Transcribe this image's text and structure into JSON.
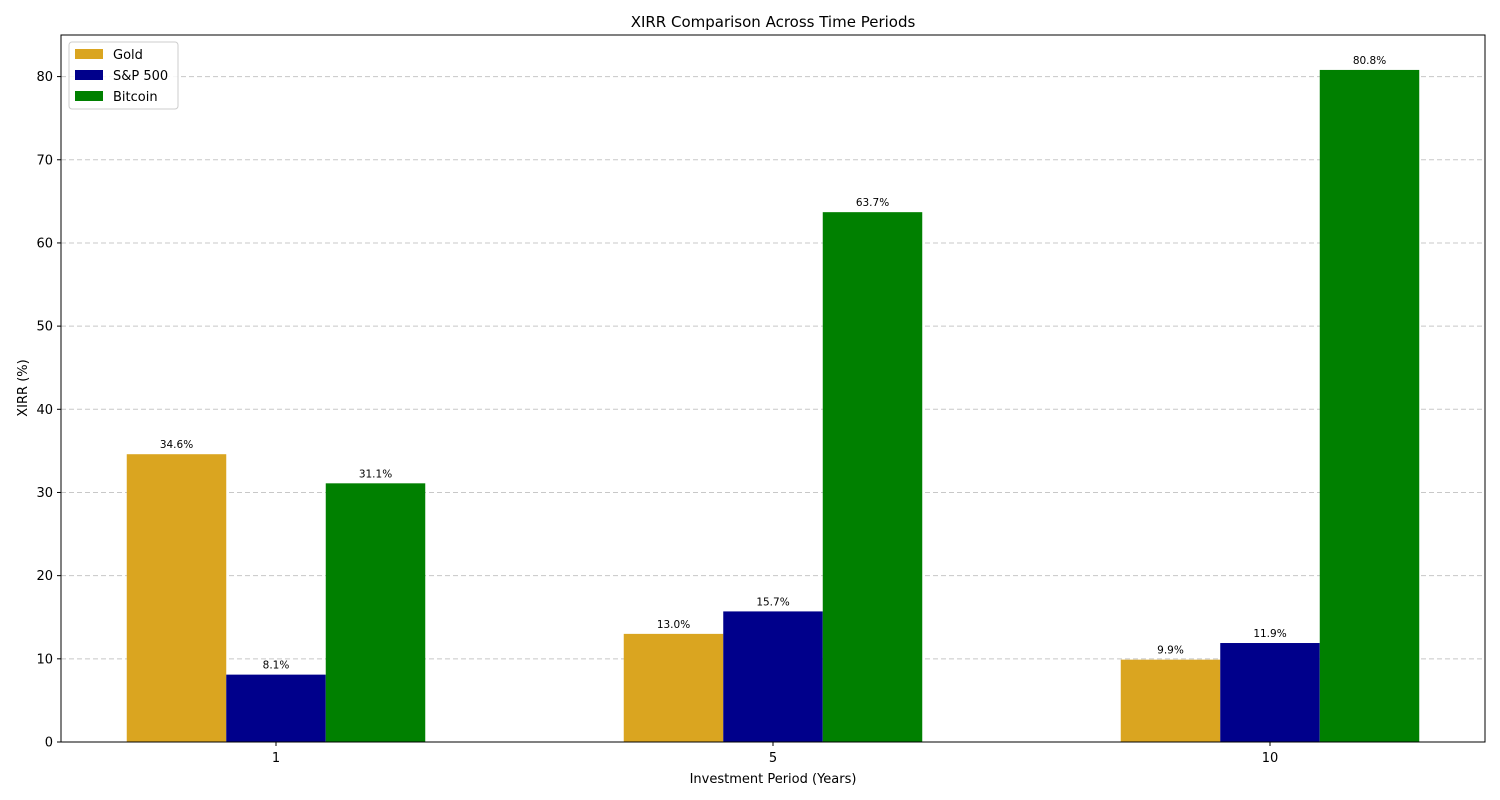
{
  "chart_data": {
    "type": "bar",
    "title": "XIRR Comparison Across Time Periods",
    "xlabel": "Investment Period (Years)",
    "ylabel": "XIRR (%)",
    "categories": [
      "1",
      "5",
      "10"
    ],
    "ylim": [
      0,
      85
    ],
    "yticks": [
      0,
      10,
      20,
      30,
      40,
      50,
      60,
      70,
      80
    ],
    "grid": "y, dashed",
    "legend_position": "top-left",
    "series": [
      {
        "name": "Gold",
        "color": "#DAA520",
        "values": [
          34.6,
          13.0,
          9.9
        ],
        "labels": [
          "34.6%",
          "13.0%",
          "9.9%"
        ]
      },
      {
        "name": "S&P 500",
        "color": "#00008B",
        "values": [
          8.1,
          15.7,
          11.9
        ],
        "labels": [
          "8.1%",
          "15.7%",
          "11.9%"
        ]
      },
      {
        "name": "Bitcoin",
        "color": "#008000",
        "values": [
          31.1,
          63.7,
          80.8
        ],
        "labels": [
          "31.1%",
          "63.7%",
          "80.8%"
        ]
      }
    ]
  }
}
